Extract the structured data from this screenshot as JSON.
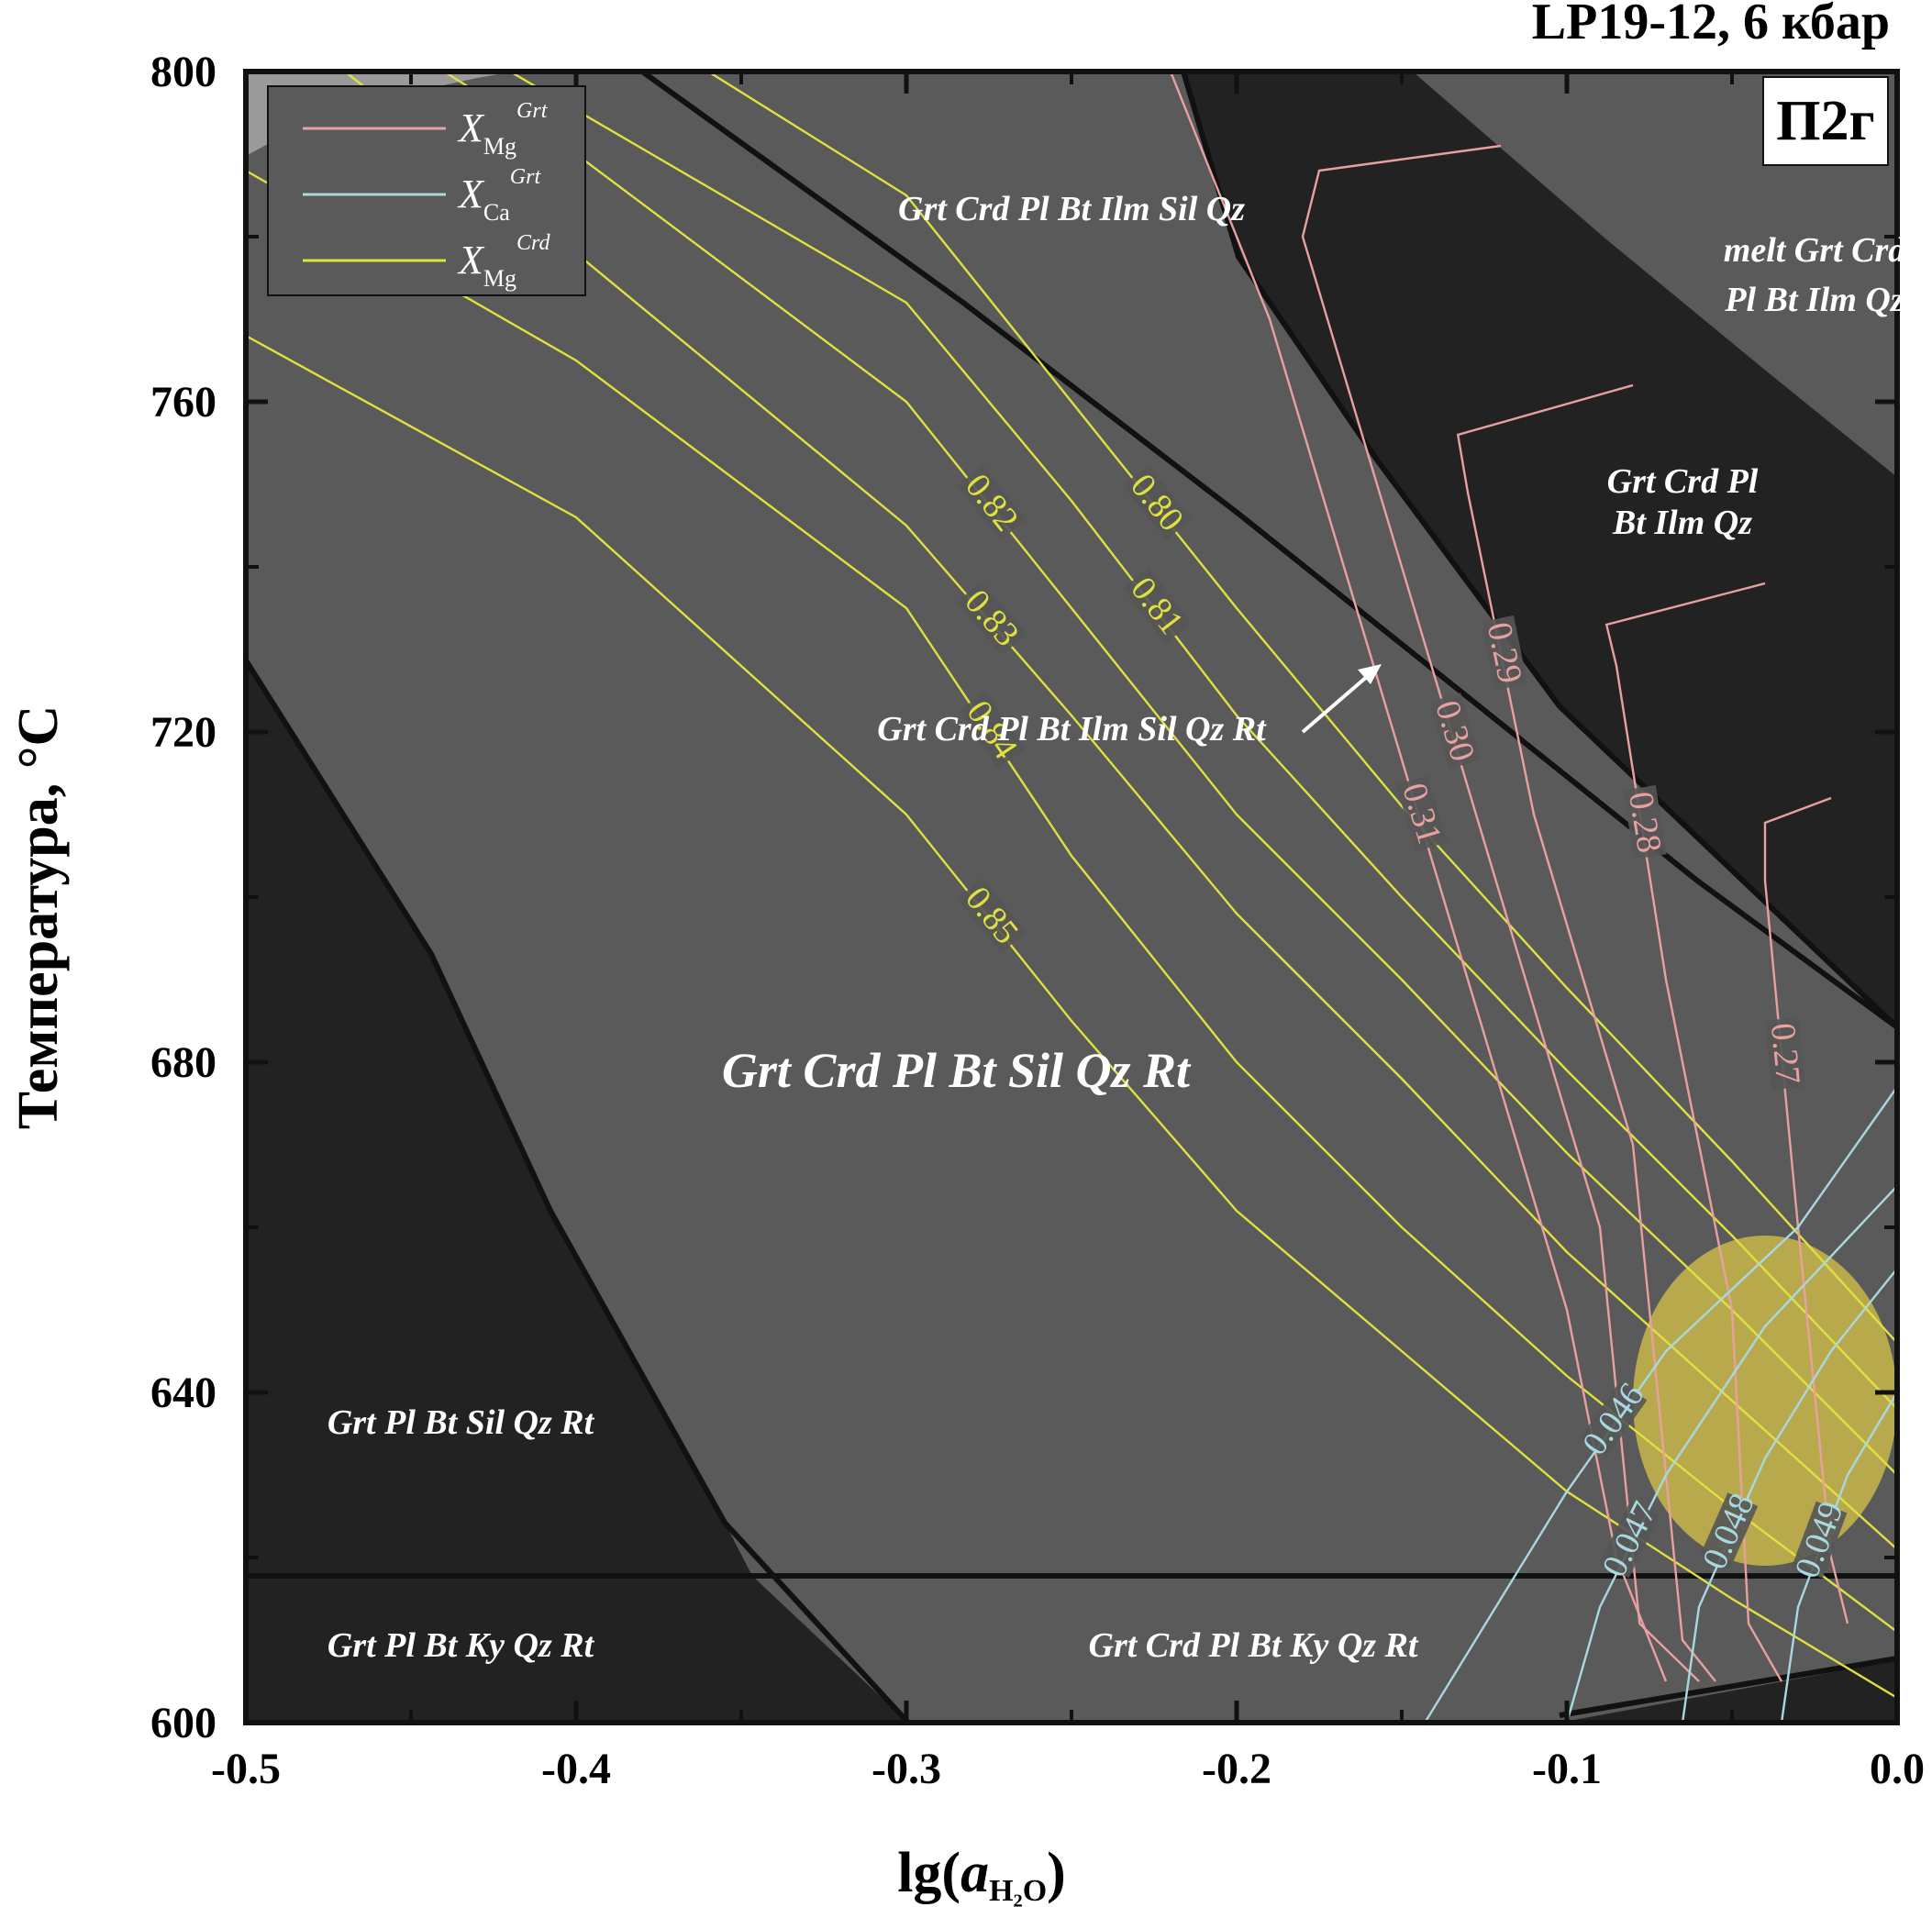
{
  "chart_data": {
    "type": "line",
    "title": "LP19-12, 6 кбар",
    "panel_label": "П2г",
    "xlabel": {
      "prefix": "lg(",
      "symbol": "a",
      "subscript": "H₂O",
      "suffix": ")"
    },
    "ylabel": "Температура, °C",
    "xlim": [
      -0.5,
      0.0
    ],
    "ylim": [
      600,
      800
    ],
    "x_ticks": [
      "-0.5",
      "-0.4",
      "-0.3",
      "-0.2",
      "-0.1",
      "0.0"
    ],
    "y_ticks": [
      "600",
      "640",
      "680",
      "720",
      "760",
      "800"
    ],
    "x_tick_values": [
      -0.5,
      -0.4,
      -0.3,
      -0.2,
      -0.1,
      0.0
    ],
    "y_tick_values": [
      600,
      640,
      680,
      720,
      760,
      800
    ],
    "grid": false,
    "legend_position": "top-left",
    "legend": [
      {
        "symbol": "X",
        "sub": "Mg",
        "sup": "Grt",
        "color": "#e8a0a0"
      },
      {
        "symbol": "X",
        "sub": "Ca",
        "sup": "Grt",
        "color": "#a8d8e0"
      },
      {
        "symbol": "X",
        "sub": "Mg",
        "sup": "Crd",
        "color": "#e0e040"
      }
    ],
    "fields": [
      {
        "label": "Grt Crd Pl Bt Sil Qz Rt",
        "x": -0.285,
        "y": 677,
        "color": "#5a5a5a"
      },
      {
        "label": "Grt Crd Pl Bt Ilm Sil Qz Rt",
        "x": -0.25,
        "y": 719,
        "color": "#5a5a5a"
      },
      {
        "label": "Grt Crd Pl Bt Ilm Sil Qz",
        "x": -0.25,
        "y": 782,
        "color": "#5a5a5a"
      },
      {
        "label": "melt Grt Crd",
        "x": -0.025,
        "y": 777,
        "color": "#222222"
      },
      {
        "label": "Pl Bt Ilm Qz",
        "x": -0.025,
        "y": 771,
        "color": "#222222"
      },
      {
        "label": "Grt Crd Pl",
        "x": -0.065,
        "y": 749,
        "color": "#222222"
      },
      {
        "label": "Bt Ilm Qz",
        "x": -0.065,
        "y": 744,
        "color": "#222222"
      },
      {
        "label": "Grt Pl Bt Sil Qz Rt",
        "x": -0.435,
        "y": 635,
        "color": "#222222"
      },
      {
        "label": "Grt Pl Bt Ky Qz Rt",
        "x": -0.435,
        "y": 608,
        "color": "#222222"
      },
      {
        "label": "Grt Crd Pl Bt Ky Qz Rt",
        "x": -0.195,
        "y": 608,
        "color": "#5a5a5a"
      }
    ],
    "series": [
      {
        "name": "0.85",
        "group": "XMg Crd",
        "x": [
          -0.5,
          -0.4,
          -0.3,
          -0.25,
          -0.2,
          -0.15,
          -0.1,
          -0.05,
          0.0
        ],
        "y": [
          768,
          746,
          710,
          685,
          662,
          645,
          628,
          615,
          603
        ]
      },
      {
        "name": "0.84",
        "group": "XMg Crd",
        "x": [
          -0.5,
          -0.4,
          -0.3,
          -0.25,
          -0.2,
          -0.15,
          -0.1,
          -0.05,
          0.0
        ],
        "y": [
          788,
          765,
          735,
          705,
          680,
          660,
          642,
          626,
          611
        ]
      },
      {
        "name": "0.83",
        "group": "XMg Crd",
        "x": [
          -0.47,
          -0.4,
          -0.3,
          -0.25,
          -0.2,
          -0.15,
          -0.1,
          -0.05,
          0.0
        ],
        "y": [
          800,
          778,
          745,
          722,
          698,
          678,
          657,
          639,
          621
        ]
      },
      {
        "name": "0.82",
        "group": "XMg Crd",
        "x": [
          -0.44,
          -0.4,
          -0.3,
          -0.25,
          -0.2,
          -0.15,
          -0.1,
          -0.05,
          0.0
        ],
        "y": [
          800,
          790,
          760,
          735,
          710,
          690,
          669,
          650,
          630
        ]
      },
      {
        "name": "0.81",
        "group": "XMg Crd",
        "x": [
          -0.42,
          -0.3,
          -0.25,
          -0.2,
          -0.15,
          -0.1,
          -0.05,
          0.0
        ],
        "y": [
          800,
          772,
          748,
          722,
          700,
          679,
          659,
          638
        ]
      },
      {
        "name": "0.80",
        "group": "XMg Crd",
        "x": [
          -0.36,
          -0.3,
          -0.25,
          -0.2,
          -0.15,
          -0.1,
          -0.05,
          0.0
        ],
        "y": [
          800,
          785,
          760,
          735,
          711,
          689,
          668,
          646
        ]
      },
      {
        "name": "0.31",
        "group": "XMg Grt",
        "x": [
          -0.22,
          -0.19,
          -0.16,
          -0.13,
          -0.1,
          -0.085,
          -0.07
        ],
        "y": [
          800,
          770,
          730,
          690,
          650,
          620,
          605
        ]
      },
      {
        "name": "0.30",
        "group": "XMg Grt",
        "x": [
          -0.12,
          -0.175,
          -0.18,
          -0.15,
          -0.12,
          -0.09,
          -0.078,
          -0.06
        ],
        "y": [
          791,
          788,
          780,
          740,
          700,
          660,
          612,
          605
        ]
      },
      {
        "name": "0.29",
        "group": "XMg Grt",
        "x": [
          -0.08,
          -0.133,
          -0.13,
          -0.11,
          -0.08,
          -0.065,
          -0.055
        ],
        "y": [
          762,
          756,
          749,
          710,
          670,
          610,
          605
        ]
      },
      {
        "name": "0.28",
        "group": "XMg Grt",
        "x": [
          -0.04,
          -0.088,
          -0.085,
          -0.07,
          -0.05,
          -0.045,
          -0.035
        ],
        "y": [
          738,
          733,
          728,
          690,
          650,
          612,
          605
        ]
      },
      {
        "name": "0.27",
        "group": "XMg Grt",
        "x": [
          -0.02,
          -0.04,
          -0.04,
          -0.03,
          -0.02,
          -0.015
        ],
        "y": [
          712,
          709,
          702,
          660,
          620,
          612
        ]
      },
      {
        "name": "0.046",
        "group": "XCa Grt",
        "x": [
          -0.143,
          -0.12,
          -0.1,
          -0.07,
          -0.03,
          0.0
        ],
        "y": [
          600,
          615,
          628,
          645,
          660,
          677
        ]
      },
      {
        "name": "0.047",
        "group": "XCa Grt",
        "x": [
          -0.1,
          -0.09,
          -0.07,
          -0.04,
          0.0
        ],
        "y": [
          600,
          614,
          630,
          648,
          665
        ]
      },
      {
        "name": "0.048",
        "group": "XCa Grt",
        "x": [
          -0.065,
          -0.06,
          -0.04,
          -0.02,
          0.0
        ],
        "y": [
          600,
          614,
          632,
          645,
          655
        ]
      },
      {
        "name": "0.049",
        "group": "XCa Grt",
        "x": [
          -0.035,
          -0.03,
          -0.015,
          0.0
        ],
        "y": [
          600,
          614,
          630,
          640
        ]
      }
    ],
    "annotations": [
      {
        "type": "ellipse",
        "color": "#c9b74a",
        "center": [
          -0.04,
          639
        ],
        "rx": 0.04,
        "ry": 20
      }
    ]
  }
}
